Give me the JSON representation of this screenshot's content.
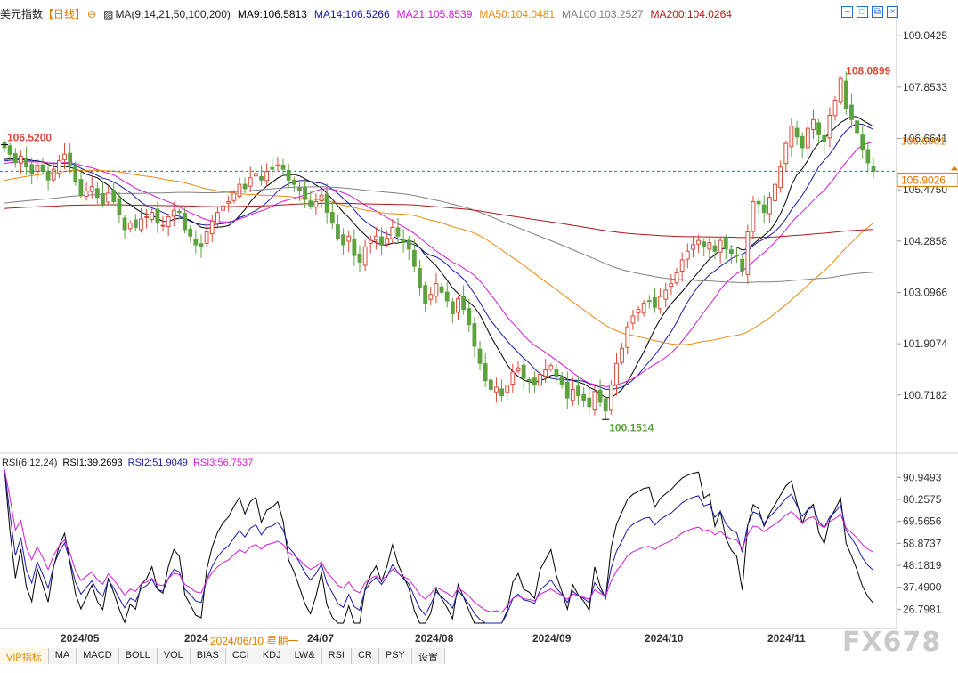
{
  "header": {
    "title": "美元指数",
    "period": "【日线】",
    "ma_params": "MA(9,14,21,50,100,200)",
    "ma_labels": [
      {
        "text": "MA9:106.5813",
        "color": "#000000"
      },
      {
        "text": "MA14:106.5266",
        "color": "#1a1aa8"
      },
      {
        "text": "MA21:105.8539",
        "color": "#d41ad4"
      },
      {
        "text": "MA50:104.0481",
        "color": "#e88a10"
      },
      {
        "text": "MA100:103.2527",
        "color": "#808080"
      },
      {
        "text": "MA200:104.0264",
        "color": "#b01818"
      }
    ]
  },
  "price_axis": {
    "ticks": [
      "109.0425",
      "107.8533",
      "106.6641",
      "105.4750",
      "104.2858",
      "103.0966",
      "101.9074",
      "100.7182"
    ],
    "ma_tag": "106.6001",
    "current_price": "105.9026"
  },
  "annotations": {
    "high": "108.0899",
    "low": "100.1514",
    "left": "106.5200"
  },
  "rsi_header": {
    "params": "RSI(6,12,24)",
    "rsi1": "RSI1:39.2693",
    "rsi2": "RSI2:51.9049",
    "rsi3": "RSI3:56.7537"
  },
  "rsi_axis": {
    "ticks": [
      "90.9493",
      "80.2575",
      "69.5656",
      "58.8737",
      "48.1819",
      "37.4900",
      "26.7981"
    ]
  },
  "time_axis": {
    "labels": [
      "2024/05",
      "2024",
      "24/07",
      "2024/08",
      "2024/09",
      "2024/10",
      "2024/11"
    ],
    "crosshair_date": "2024/06/10 星期一"
  },
  "tabs": [
    "VIP指标",
    "MA",
    "MACD",
    "BOLL",
    "VOL",
    "BIAS",
    "CCI",
    "KDJ",
    "LW&",
    "RSI",
    "CR",
    "PSY",
    "设置"
  ],
  "watermark": "FX678",
  "chart_data": {
    "type": "candlestick",
    "instrument": "美元指数",
    "period": "日线",
    "y_range": [
      99.6,
      109.5
    ],
    "closes": [
      106.45,
      106.3,
      106.1,
      106.25,
      106.0,
      105.85,
      106.05,
      105.9,
      105.7,
      105.95,
      106.15,
      106.3,
      106.05,
      105.65,
      105.35,
      105.45,
      105.55,
      105.3,
      105.15,
      105.4,
      105.2,
      104.9,
      104.55,
      104.7,
      104.6,
      104.8,
      104.85,
      104.95,
      104.7,
      104.65,
      104.85,
      105.0,
      104.95,
      104.55,
      104.4,
      104.2,
      104.15,
      104.5,
      104.75,
      104.95,
      105.1,
      105.2,
      105.4,
      105.6,
      105.5,
      105.75,
      105.85,
      105.7,
      105.9,
      105.95,
      106.05,
      105.95,
      105.7,
      105.6,
      105.45,
      105.25,
      105.1,
      105.2,
      105.35,
      104.95,
      104.7,
      104.35,
      104.2,
      104.4,
      103.95,
      103.8,
      104.15,
      104.3,
      104.4,
      104.2,
      104.35,
      104.6,
      104.4,
      104.25,
      104.1,
      103.7,
      103.2,
      102.85,
      103.05,
      103.3,
      103.1,
      102.9,
      102.6,
      102.95,
      102.7,
      102.35,
      101.85,
      101.45,
      101.05,
      100.85,
      100.9,
      100.7,
      100.95,
      101.25,
      101.35,
      101.1,
      101.05,
      100.95,
      101.2,
      101.3,
      101.4,
      101.15,
      100.95,
      100.65,
      100.85,
      100.7,
      100.6,
      100.45,
      100.8,
      100.55,
      100.35,
      100.95,
      101.45,
      101.8,
      102.3,
      102.55,
      102.7,
      102.85,
      102.9,
      102.75,
      103.0,
      103.15,
      103.3,
      103.55,
      103.85,
      104.05,
      104.2,
      104.3,
      104.15,
      104.25,
      104.05,
      104.3,
      104.1,
      104.0,
      103.95,
      103.6,
      104.5,
      105.2,
      105.15,
      104.95,
      105.3,
      105.6,
      106.0,
      106.55,
      106.95,
      106.7,
      106.45,
      106.9,
      107.1,
      106.75,
      106.6,
      107.2,
      107.55,
      108.05,
      107.35,
      107.1,
      106.8,
      106.4,
      106.1,
      105.9
    ],
    "annotations": {
      "high": 108.0899,
      "low": 100.1514,
      "left_marker": 106.52
    },
    "moving_averages": [
      {
        "name": "MA9",
        "value": 106.5813
      },
      {
        "name": "MA14",
        "value": 106.5266
      },
      {
        "name": "MA21",
        "value": 105.8539
      },
      {
        "name": "MA50",
        "value": 104.0481
      },
      {
        "name": "MA100",
        "value": 103.2527
      },
      {
        "name": "MA200",
        "value": 104.0264
      }
    ],
    "rsi": {
      "params": [
        6,
        12,
        24
      ],
      "last": [
        39.2693,
        51.9049,
        56.7537
      ],
      "y_range": [
        20,
        95
      ]
    }
  },
  "colors": {
    "up": "#d84a3a",
    "down": "#5ca340",
    "ma": [
      "#000000",
      "#1a1aa8",
      "#d41ad4",
      "#e88a10",
      "#808080",
      "#b01818"
    ],
    "rsi": [
      "#000000",
      "#1a1aa8",
      "#d41ad4"
    ],
    "price_dash": "#2a7a8a",
    "accent": "#e07800"
  }
}
